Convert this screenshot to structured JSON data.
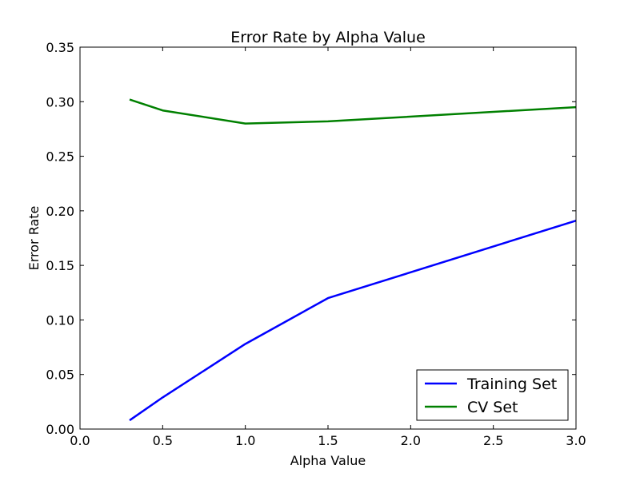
{
  "chart_data": {
    "type": "line",
    "title": "Error Rate by Alpha Value",
    "xlabel": "Alpha Value",
    "ylabel": "Error Rate",
    "xlim": [
      0.0,
      3.0
    ],
    "ylim": [
      0.0,
      0.35
    ],
    "xticks": [
      0.0,
      0.5,
      1.0,
      1.5,
      2.0,
      2.5,
      3.0
    ],
    "xtick_labels": [
      "0.0",
      "0.5",
      "1.0",
      "1.5",
      "2.0",
      "2.5",
      "3.0"
    ],
    "yticks": [
      0.0,
      0.05,
      0.1,
      0.15,
      0.2,
      0.25,
      0.3,
      0.35
    ],
    "ytick_labels": [
      "0.00",
      "0.05",
      "0.10",
      "0.15",
      "0.20",
      "0.25",
      "0.30",
      "0.35"
    ],
    "grid": false,
    "legend_position": "bottom-right",
    "series": [
      {
        "name": "Training Set",
        "color": "#0000ff",
        "x": [
          0.3,
          0.5,
          1.0,
          1.5,
          3.0
        ],
        "y": [
          0.008,
          0.029,
          0.078,
          0.12,
          0.191
        ]
      },
      {
        "name": "CV Set",
        "color": "#008000",
        "x": [
          0.3,
          0.5,
          1.0,
          1.5,
          3.0
        ],
        "y": [
          0.302,
          0.292,
          0.28,
          0.282,
          0.295
        ]
      }
    ]
  }
}
